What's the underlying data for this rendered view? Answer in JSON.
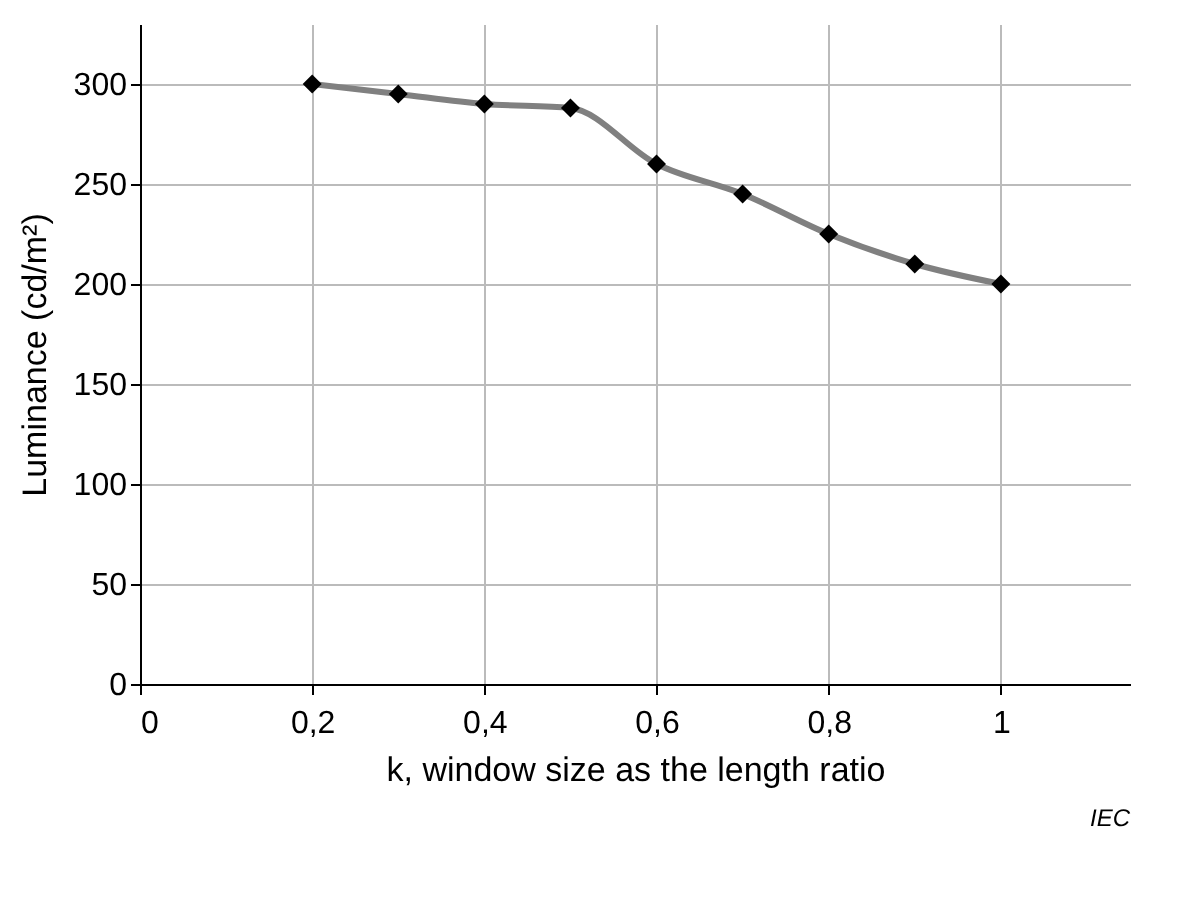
{
  "chart_data": {
    "type": "line",
    "xlabel": "k, window size as the length ratio",
    "ylabel": "Luminance   (cd/m²)",
    "x": [
      0.2,
      0.3,
      0.4,
      0.5,
      0.6,
      0.7,
      0.8,
      0.9,
      1.0
    ],
    "series": [
      {
        "color": "#808080",
        "values": [
          300,
          295,
          290,
          288,
          260,
          245,
          225,
          210,
          200
        ]
      }
    ],
    "xlim": [
      0,
      1.15
    ],
    "ylim": [
      0,
      330
    ],
    "xticks": [
      0,
      {
        "value": 0.2,
        "label": "0,2"
      },
      {
        "value": 0.4,
        "label": "0,4"
      },
      {
        "value": 0.6,
        "label": "0,6"
      },
      {
        "value": 0.8,
        "label": "0,8"
      },
      1
    ],
    "yticks": [
      0,
      50,
      100,
      150,
      200,
      250,
      300
    ],
    "grid": true,
    "marker": "diamond",
    "line_style": "solid",
    "annotations": [
      "IEC"
    ]
  }
}
